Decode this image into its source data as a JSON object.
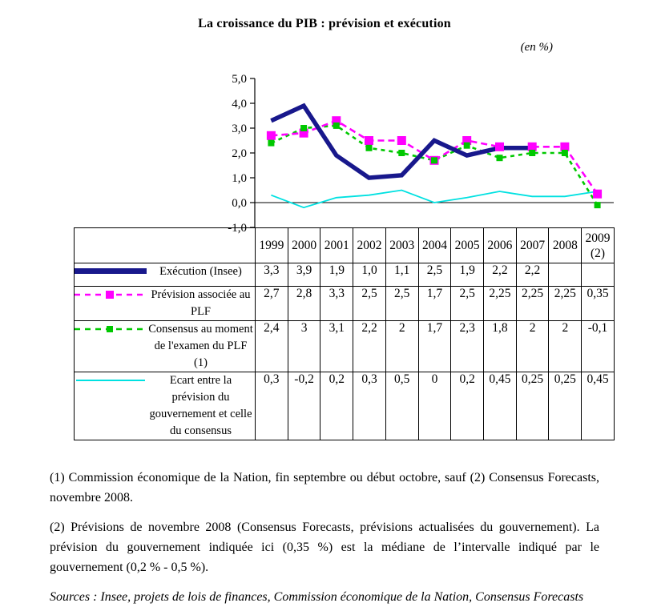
{
  "header": {
    "title": "La croissance du PIB : prévision et exécution",
    "unit_label": "(en %)"
  },
  "chart_data": {
    "type": "line",
    "title": "La croissance du PIB : prévision et exécution",
    "xlabel": "",
    "ylabel": "(en %)",
    "grid": false,
    "legend_position": "table-left",
    "categories": [
      "1999",
      "2000",
      "2001",
      "2002",
      "2003",
      "2004",
      "2005",
      "2006",
      "2007",
      "2008",
      "2009 (2)"
    ],
    "y_axis": {
      "min": -1,
      "max": 5,
      "tick_step": 1,
      "tick_labels": [
        "5,0",
        "4,0",
        "3,0",
        "2,0",
        "1,0",
        "0,0",
        "-1,0"
      ]
    },
    "series": [
      {
        "name": "Exécution (Insee)",
        "color": "#18188c",
        "line": "solid-thick",
        "marker": "none",
        "values": [
          3.3,
          3.9,
          1.9,
          1.0,
          1.1,
          2.5,
          1.9,
          2.2,
          2.2,
          null,
          null
        ],
        "labels": [
          "3,3",
          "3,9",
          "1,9",
          "1,0",
          "1,1",
          "2,5",
          "1,9",
          "2,2",
          "2,2",
          "",
          ""
        ]
      },
      {
        "name": "Prévision associée au PLF",
        "color": "#ff00ff",
        "line": "dashed",
        "marker": "square",
        "values": [
          2.7,
          2.8,
          3.3,
          2.5,
          2.5,
          1.7,
          2.5,
          2.25,
          2.25,
          2.25,
          0.35
        ],
        "labels": [
          "2,7",
          "2,8",
          "3,3",
          "2,5",
          "2,5",
          "1,7",
          "2,5",
          "2,25",
          "2,25",
          "2,25",
          "0,35"
        ]
      },
      {
        "name": "Consensus au moment de l'examen du PLF (1)",
        "color": "#00c800",
        "line": "dashed",
        "marker": "square-small",
        "values": [
          2.4,
          3.0,
          3.1,
          2.2,
          2.0,
          1.7,
          2.3,
          1.8,
          2.0,
          2.0,
          -0.1
        ],
        "labels": [
          "2,4",
          "3",
          "3,1",
          "2,2",
          "2",
          "1,7",
          "2,3",
          "1,8",
          "2",
          "2",
          "-0,1"
        ]
      },
      {
        "name": "Ecart entre la prévision du gouvernement et celle du consensus",
        "color": "#00e1e1",
        "line": "solid-thin",
        "marker": "none",
        "values": [
          0.3,
          -0.2,
          0.2,
          0.3,
          0.5,
          0.0,
          0.2,
          0.45,
          0.25,
          0.25,
          0.45
        ],
        "labels": [
          "0,3",
          "-0,2",
          "0,2",
          "0,3",
          "0,5",
          "0",
          "0,2",
          "0,45",
          "0,25",
          "0,25",
          "0,45"
        ]
      }
    ]
  },
  "notes": {
    "note1": "(1) Commission économique de la Nation, fin septembre ou début octobre, sauf (2) Consensus Forecasts, novembre 2008.",
    "note2": "(2) Prévisions de novembre 2008 (Consensus Forecasts, prévisions actualisées du gouvernement). La prévision du gouvernement indiquée ici (0,35 %) est la médiane de l’intervalle indiqué par le gouvernement (0,2 % - 0,5 %).",
    "sources": "Sources : Insee, projets de lois de finances, Commission économique de la Nation, Consensus Forecasts"
  }
}
